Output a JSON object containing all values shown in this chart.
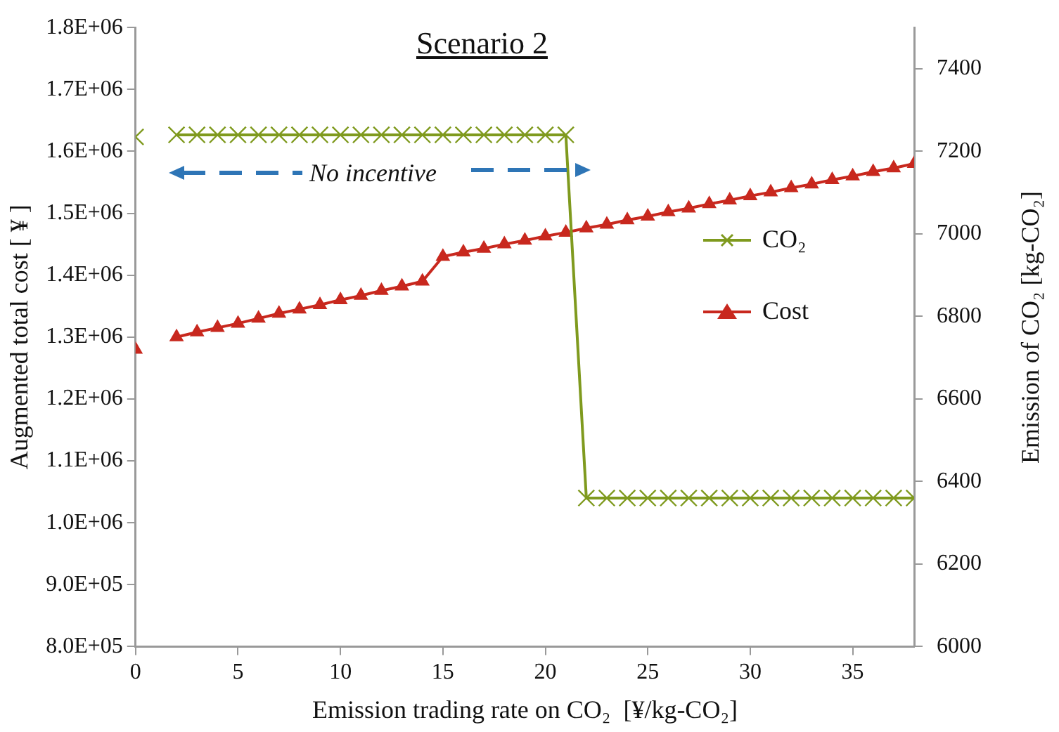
{
  "chart_data": {
    "type": "line",
    "title": "Scenario 2",
    "xlabel": "Emission trading rate on CO₂  [¥/kg-CO₂]",
    "ylabel": "Augmented total cost [ ¥ ]",
    "y2label": "Emission of CO₂ [kg-CO₂]",
    "annotations": [
      "No incentive"
    ],
    "x": [
      0,
      1,
      2,
      3,
      4,
      5,
      6,
      7,
      8,
      9,
      10,
      11,
      12,
      13,
      14,
      15,
      16,
      17,
      18,
      19,
      20,
      21,
      22,
      23,
      24,
      25,
      26,
      27,
      28,
      29,
      30,
      31,
      32,
      33,
      34,
      35,
      36,
      37,
      38
    ],
    "xlim": [
      0,
      38
    ],
    "xticks": [
      0,
      5,
      10,
      15,
      20,
      25,
      30,
      35
    ],
    "ylim": [
      800000,
      1800000
    ],
    "yticks": [
      {
        "value": 800000,
        "label": "8.0E+05"
      },
      {
        "value": 900000,
        "label": "9.0E+05"
      },
      {
        "value": 1000000,
        "label": "1.0E+06"
      },
      {
        "value": 1100000,
        "label": "1.1E+06"
      },
      {
        "value": 1200000,
        "label": "1.2E+06"
      },
      {
        "value": 1300000,
        "label": "1.3E+06"
      },
      {
        "value": 1400000,
        "label": "1.4E+06"
      },
      {
        "value": 1500000,
        "label": "1.5E+06"
      },
      {
        "value": 1600000,
        "label": "1.6E+06"
      },
      {
        "value": 1700000,
        "label": "1.7E+06"
      },
      {
        "value": 1800000,
        "label": "1.8E+06"
      }
    ],
    "y2lim": [
      6000,
      7500
    ],
    "y2ticks": [
      6000,
      6200,
      6400,
      6600,
      6800,
      7000,
      7200,
      7400
    ],
    "grid": false,
    "legend": "right",
    "series": [
      {
        "name": "CO₂",
        "color": "#7f9a1e",
        "marker": "cross",
        "axis": "y2",
        "values": [
          7235,
          null,
          7240,
          7240,
          7240,
          7240,
          7240,
          7240,
          7240,
          7240,
          7240,
          7240,
          7240,
          7240,
          7240,
          7240,
          7240,
          7240,
          7240,
          7240,
          7240,
          7240,
          6360,
          6360,
          6360,
          6360,
          6360,
          6360,
          6360,
          6360,
          6360,
          6360,
          6360,
          6360,
          6360,
          6360,
          6360,
          6360,
          6360
        ]
      },
      {
        "name": "Cost",
        "color": "#c8281e",
        "marker": "triangle",
        "values": [
          1280000,
          null,
          1300000,
          1308000,
          1315000,
          1322000,
          1330000,
          1338000,
          1345000,
          1352000,
          1360000,
          1367000,
          1375000,
          1382000,
          1390000,
          1430000,
          1437000,
          1443000,
          1450000,
          1456000,
          1463000,
          1469000,
          1476000,
          1482000,
          1489000,
          1495000,
          1502000,
          1508000,
          1515000,
          1521000,
          1528000,
          1534000,
          1541000,
          1547000,
          1554000,
          1560000,
          1567000,
          1573000,
          1580000
        ]
      }
    ]
  }
}
